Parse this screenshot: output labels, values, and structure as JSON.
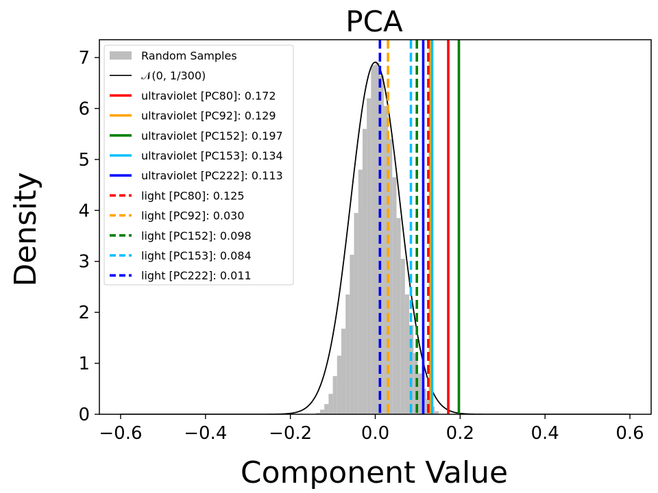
{
  "chart_data": {
    "type": "histogram",
    "title": "PCA",
    "xlabel": "Component Value",
    "ylabel": "Density",
    "xlim": [
      -0.65,
      0.65
    ],
    "ylim": [
      0,
      7.35
    ],
    "xticks": [
      -0.6,
      -0.4,
      -0.2,
      0.0,
      0.2,
      0.4,
      0.6
    ],
    "xtick_labels": [
      "−0.6",
      "−0.4",
      "−0.2",
      "0.0",
      "0.2",
      "0.4",
      "0.6"
    ],
    "yticks": [
      0,
      1,
      2,
      3,
      4,
      5,
      6,
      7
    ],
    "ytick_labels": [
      "0",
      "1",
      "2",
      "3",
      "4",
      "5",
      "6",
      "7"
    ],
    "histogram": {
      "name": "Random Samples",
      "color": "#bebebe",
      "bin_width": 0.01,
      "bins": [
        [
          -0.135,
          0.03
        ],
        [
          -0.125,
          0.09
        ],
        [
          -0.115,
          0.2
        ],
        [
          -0.105,
          0.4
        ],
        [
          -0.095,
          0.75
        ],
        [
          -0.085,
          1.15
        ],
        [
          -0.075,
          1.68
        ],
        [
          -0.065,
          2.35
        ],
        [
          -0.055,
          3.13
        ],
        [
          -0.045,
          3.95
        ],
        [
          -0.035,
          4.8
        ],
        [
          -0.025,
          5.6
        ],
        [
          -0.015,
          6.2
        ],
        [
          -0.005,
          6.85
        ],
        [
          0.005,
          6.9
        ],
        [
          0.015,
          6.65
        ],
        [
          0.025,
          6.05
        ],
        [
          0.035,
          5.4
        ],
        [
          0.045,
          4.65
        ],
        [
          0.055,
          3.85
        ],
        [
          0.065,
          3.05
        ],
        [
          0.075,
          2.35
        ],
        [
          0.085,
          1.75
        ],
        [
          0.095,
          1.2
        ],
        [
          0.105,
          0.8
        ],
        [
          0.115,
          0.5
        ],
        [
          0.125,
          0.3
        ],
        [
          0.135,
          0.15
        ],
        [
          0.145,
          0.06
        ]
      ]
    },
    "normal_curve": {
      "name": "𝒩(0, 1/300)",
      "mean": 0,
      "variance": 0.0033333,
      "color": "#000000"
    },
    "vlines": [
      {
        "name": "ultraviolet [PC80]: 0.172",
        "x": 0.172,
        "color": "#ff0000",
        "style": "solid"
      },
      {
        "name": "ultraviolet [PC92]: 0.129",
        "x": 0.129,
        "color": "#ffa500",
        "style": "solid"
      },
      {
        "name": "ultraviolet [PC152]: 0.197",
        "x": 0.197,
        "color": "#008000",
        "style": "solid"
      },
      {
        "name": "ultraviolet [PC153]: 0.134",
        "x": 0.134,
        "color": "#00bfff",
        "style": "solid"
      },
      {
        "name": "ultraviolet [PC222]: 0.113",
        "x": 0.113,
        "color": "#0000ff",
        "style": "solid"
      },
      {
        "name": "light [PC80]: 0.125",
        "x": 0.125,
        "color": "#ff0000",
        "style": "dashed"
      },
      {
        "name": "light [PC92]: 0.030",
        "x": 0.03,
        "color": "#ffa500",
        "style": "dashed"
      },
      {
        "name": "light [PC152]: 0.098",
        "x": 0.098,
        "color": "#008000",
        "style": "dashed"
      },
      {
        "name": "light [PC153]: 0.084",
        "x": 0.084,
        "color": "#00bfff",
        "style": "dashed"
      },
      {
        "name": "light [PC222]: 0.011",
        "x": 0.011,
        "color": "#0000ff",
        "style": "dashed"
      }
    ],
    "legend_position": "upper-left"
  }
}
